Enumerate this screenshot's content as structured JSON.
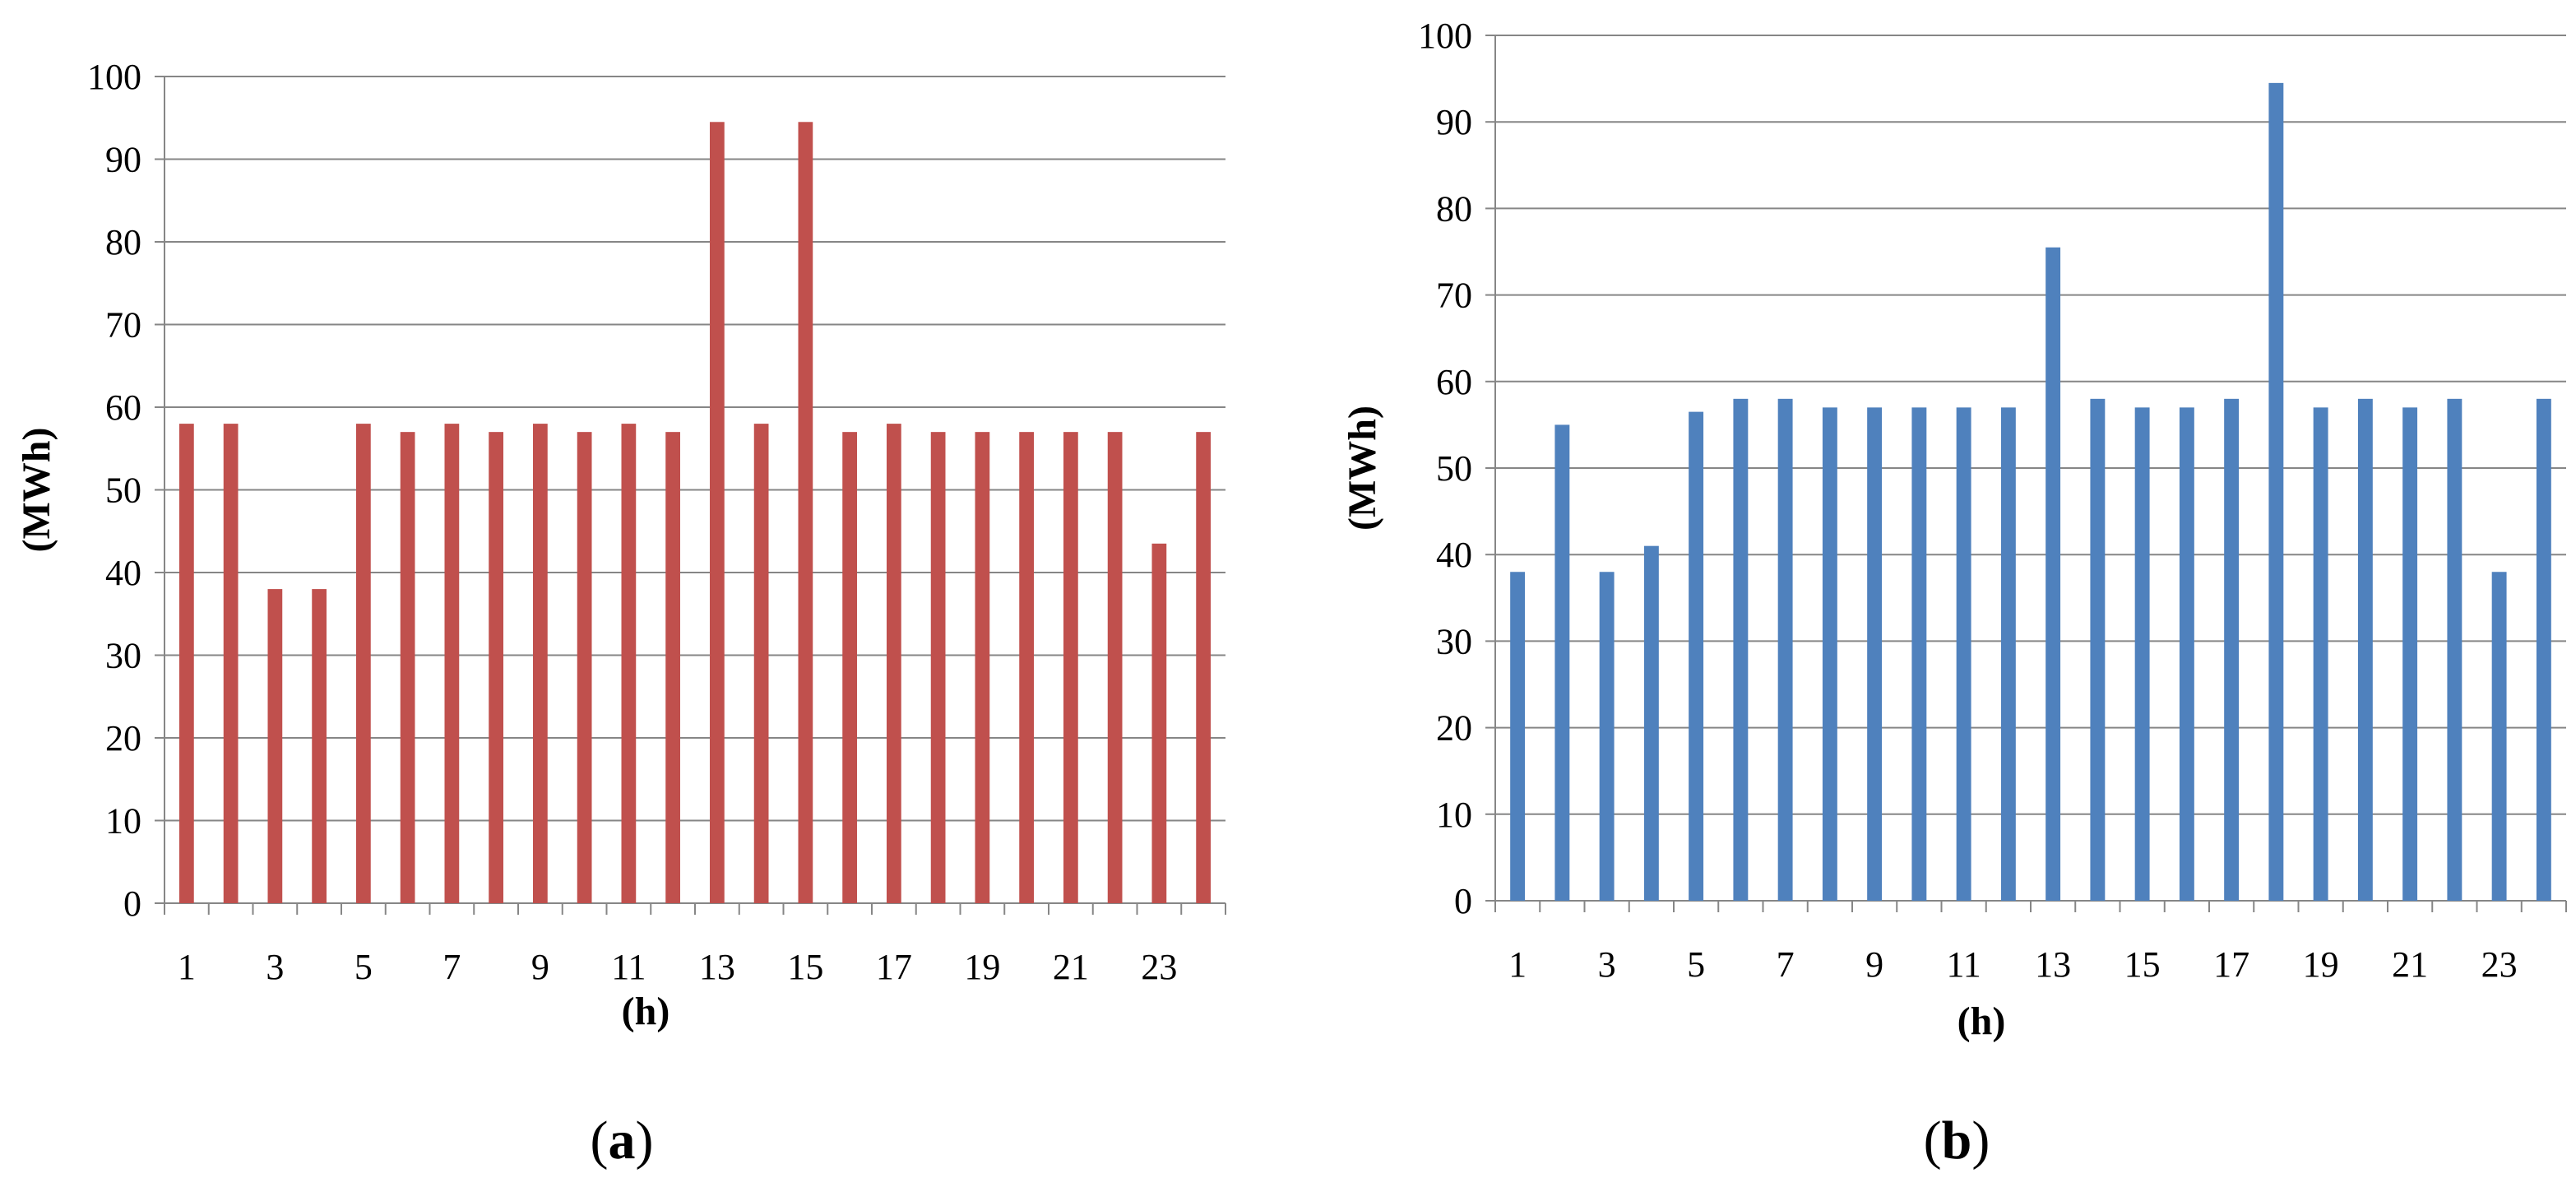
{
  "chart_data": [
    {
      "type": "bar",
      "panel_label": "(a)",
      "xlabel": "(h)",
      "ylabel": "(MWh)",
      "ylim": [
        0,
        100
      ],
      "yticks": [
        0,
        10,
        20,
        30,
        40,
        50,
        60,
        70,
        80,
        90,
        100
      ],
      "categories": [
        1,
        2,
        3,
        4,
        5,
        6,
        7,
        8,
        9,
        10,
        11,
        12,
        13,
        14,
        15,
        16,
        17,
        18,
        19,
        20,
        21,
        22,
        23,
        24
      ],
      "x_tick_labels": [
        "1",
        "3",
        "5",
        "7",
        "9",
        "11",
        "13",
        "15",
        "17",
        "19",
        "21",
        "23"
      ],
      "values": [
        58,
        58,
        38,
        38,
        58,
        57,
        58,
        57,
        58,
        57,
        58,
        57,
        94.5,
        58,
        94.5,
        57,
        58,
        57,
        57,
        57,
        57,
        57,
        43.5,
        57
      ],
      "grid": true,
      "legend": "none",
      "color": "#C0504D"
    },
    {
      "type": "bar",
      "panel_label": "(b)",
      "xlabel": "(h)",
      "ylabel": "(MWh)",
      "ylim": [
        0,
        100
      ],
      "yticks": [
        0,
        10,
        20,
        30,
        40,
        50,
        60,
        70,
        80,
        90,
        100
      ],
      "categories": [
        1,
        2,
        3,
        4,
        5,
        6,
        7,
        8,
        9,
        10,
        11,
        12,
        13,
        14,
        15,
        16,
        17,
        18,
        19,
        20,
        21,
        22,
        23,
        24
      ],
      "x_tick_labels": [
        "1",
        "3",
        "5",
        "7",
        "9",
        "11",
        "13",
        "15",
        "17",
        "19",
        "21",
        "23"
      ],
      "values": [
        38,
        55,
        38,
        41,
        56.5,
        58,
        58,
        57,
        57,
        57,
        57,
        57,
        75.5,
        58,
        57,
        57,
        58,
        94.5,
        57,
        58,
        57,
        58,
        38,
        58
      ],
      "grid": true,
      "legend": "none",
      "color": "#4F81BD"
    }
  ]
}
